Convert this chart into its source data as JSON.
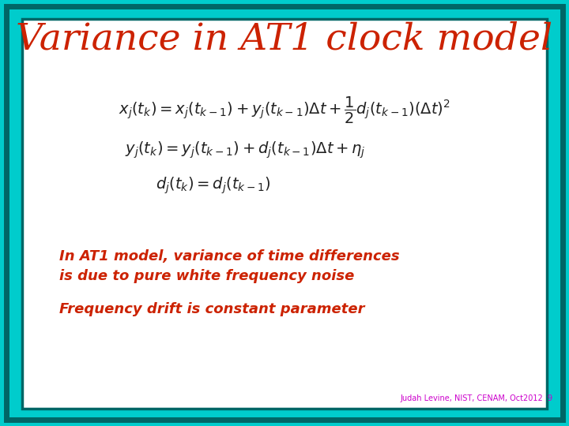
{
  "title": "Variance in AT1 clock model",
  "title_color": "#cc2200",
  "title_fontsize": 34,
  "eq1": "$x_j(t_k) = x_j(t_{k-1}) + y_j(t_{k-1})\\Delta t + \\dfrac{1}{2}d_j(t_{k-1})(\\Delta t)^2$",
  "eq2": "$y_j(t_k) = y_j(t_{k-1}) + d_j(t_{k-1})\\Delta t + \\eta_j$",
  "eq3": "$d_j(t_k) = d_j(t_{k-1})$",
  "text1": "In AT1 model, variance of time differences",
  "text2": "is due to pure white frequency noise",
  "text3": "Frequency drift is constant parameter",
  "footnote": "Judah Levine, NIST, CENAM, Oct2012  9",
  "text_color": "#cc2200",
  "eq_color": "#222222",
  "footnote_color": "#cc00cc",
  "bg_outer": "#00cccc",
  "bg_inner": "#ffffff",
  "border_dark": "#006666"
}
